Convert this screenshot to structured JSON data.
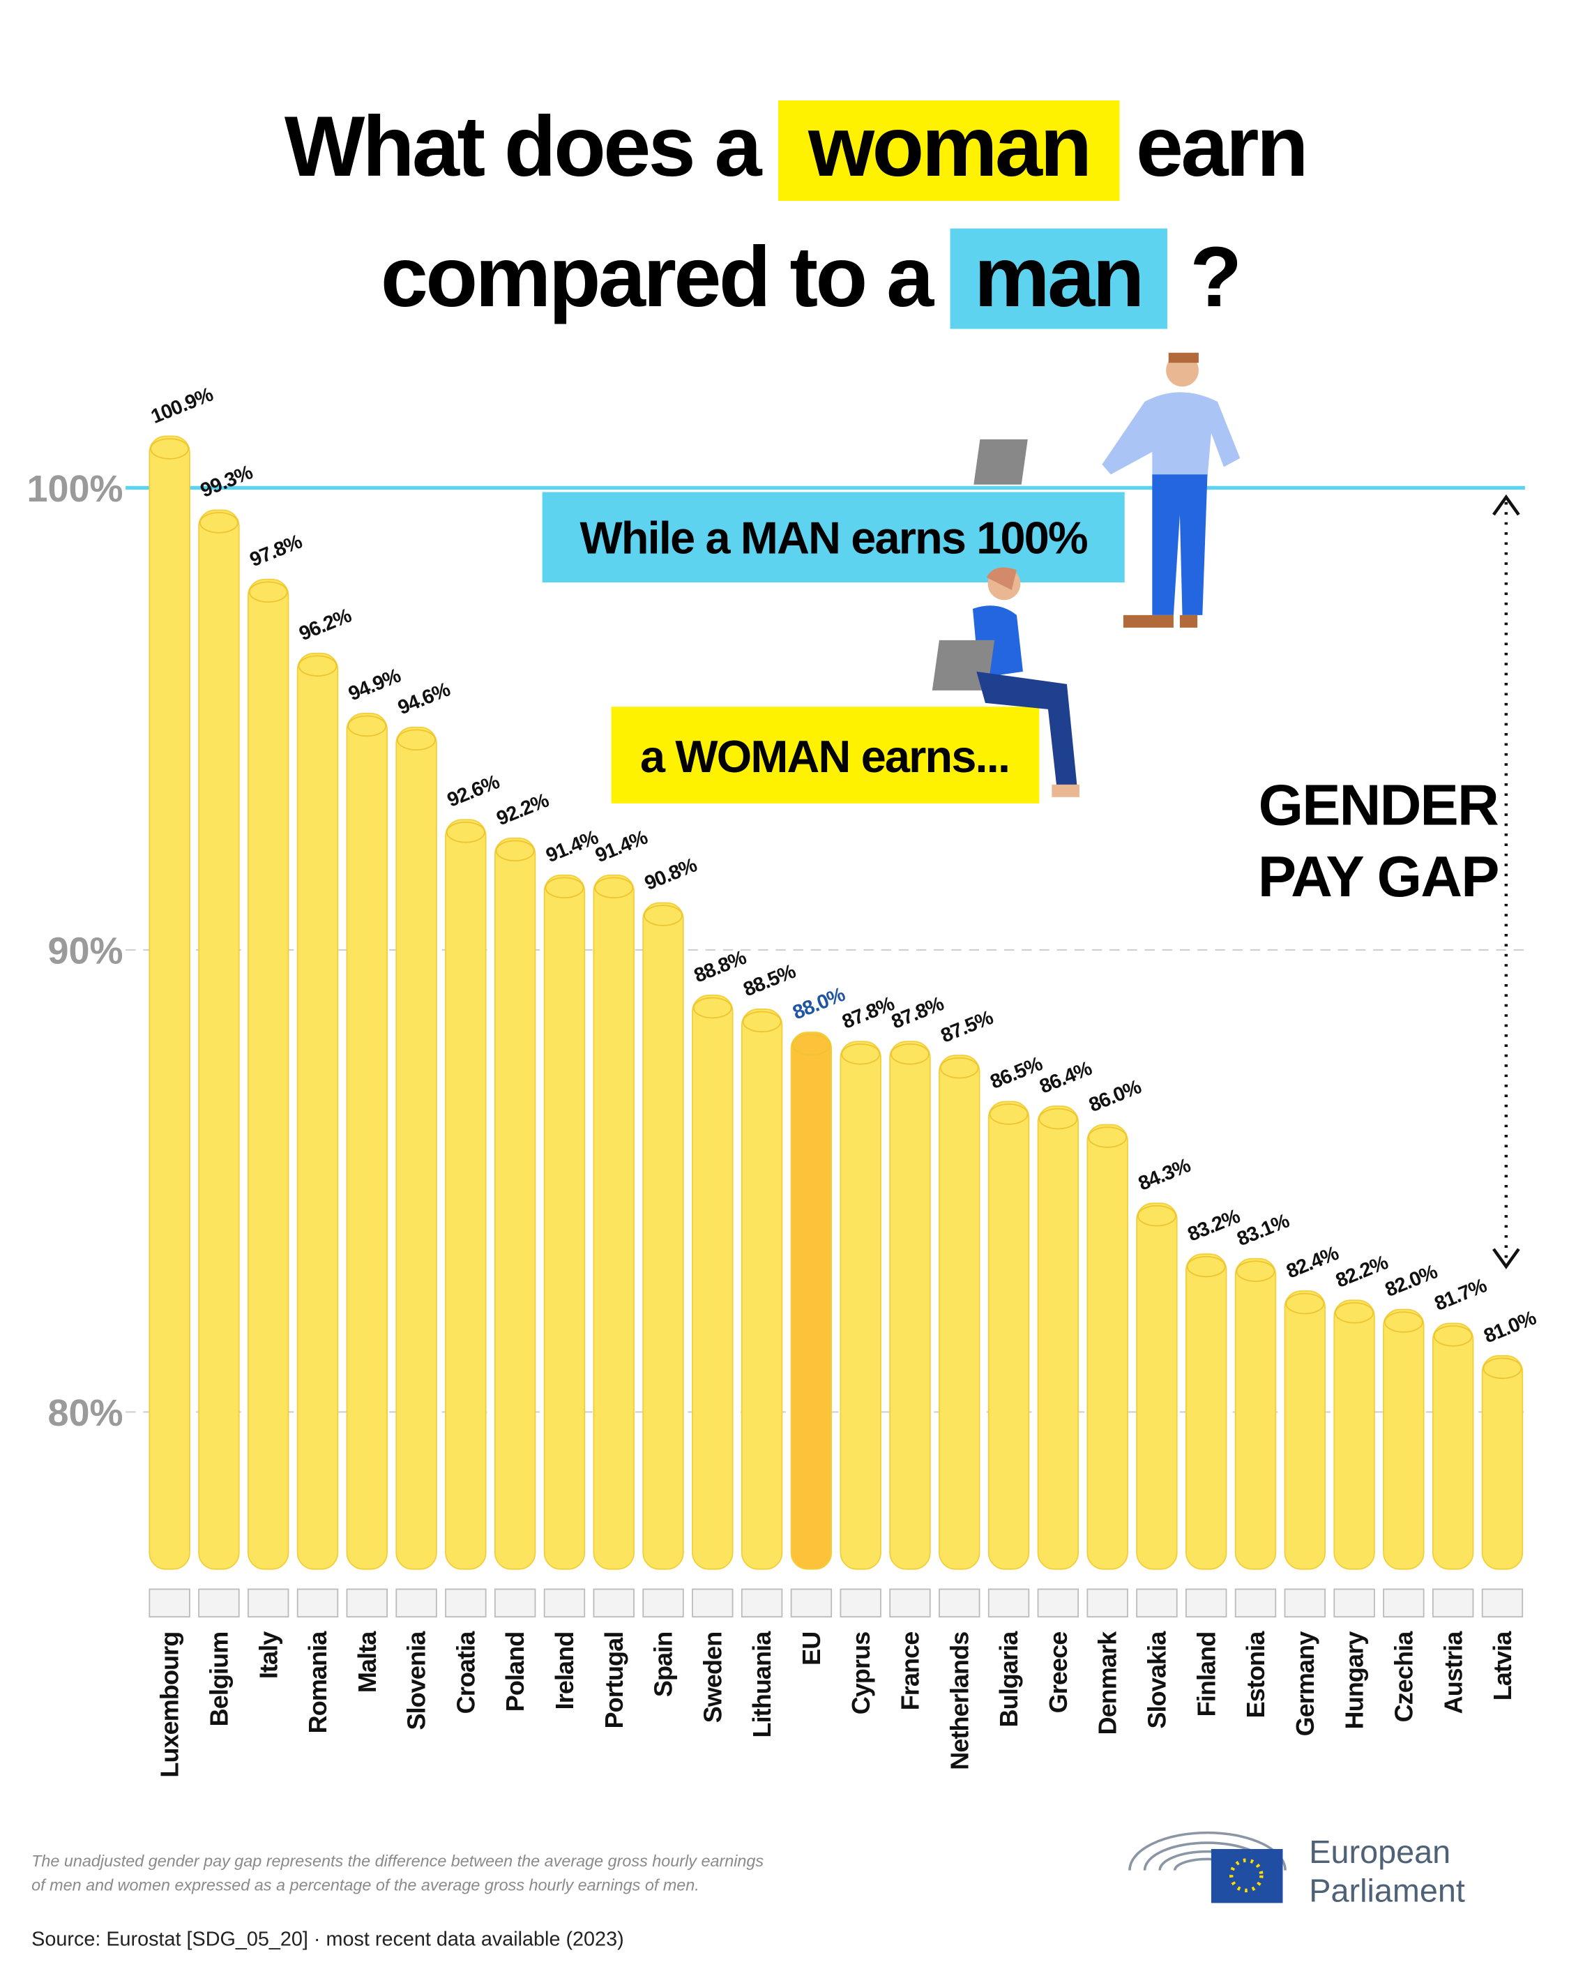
{
  "title": {
    "part1": "What does a",
    "woman": "woman",
    "part2": "earn",
    "part3": "compared to a",
    "man": "man",
    "part4": "?"
  },
  "chart_data": {
    "type": "bar",
    "categories": [
      "Luxembourg",
      "Belgium",
      "Italy",
      "Romania",
      "Malta",
      "Slovenia",
      "Croatia",
      "Poland",
      "Ireland",
      "Portugal",
      "Spain",
      "Sweden",
      "Lithuania",
      "EU",
      "Cyprus",
      "France",
      "Netherlands",
      "Bulgaria",
      "Greece",
      "Denmark",
      "Slovakia",
      "Finland",
      "Estonia",
      "Germany",
      "Hungary",
      "Czechia",
      "Austria",
      "Latvia"
    ],
    "values": [
      100.9,
      99.3,
      97.8,
      96.2,
      94.9,
      94.6,
      92.6,
      92.2,
      91.4,
      91.4,
      90.8,
      88.8,
      88.5,
      88.0,
      87.8,
      87.8,
      87.5,
      86.5,
      86.4,
      86.0,
      84.3,
      83.2,
      83.1,
      82.4,
      82.2,
      82.0,
      81.7,
      81.0
    ],
    "value_labels": [
      "100.9%",
      "99.3%",
      "97.8%",
      "96.2%",
      "94.9%",
      "94.6%",
      "92.6%",
      "92.2%",
      "91.4%",
      "91.4%",
      "90.8%",
      "88.8%",
      "88.5%",
      "88.0%",
      "87.8%",
      "87.8%",
      "87.5%",
      "86.5%",
      "86.4%",
      "86.0%",
      "84.3%",
      "83.2%",
      "83.1%",
      "82.4%",
      "82.2%",
      "82.0%",
      "81.7%",
      "81.0%"
    ],
    "colors": [
      "#fde45f",
      "#fde45f",
      "#fde45f",
      "#fde45f",
      "#fde45f",
      "#fde45f",
      "#fde45f",
      "#fde45f",
      "#fde45f",
      "#fde45f",
      "#fde45f",
      "#fde45f",
      "#fde45f",
      "#fbc23a",
      "#fde45f",
      "#fde45f",
      "#fde45f",
      "#fde45f",
      "#fde45f",
      "#fde45f",
      "#fde45f",
      "#fde45f",
      "#fde45f",
      "#fde45f",
      "#fde45f",
      "#fde45f",
      "#fde45f",
      "#fde45f"
    ],
    "label_colors": [
      "#111",
      "#111",
      "#111",
      "#111",
      "#111",
      "#111",
      "#111",
      "#111",
      "#111",
      "#111",
      "#111",
      "#111",
      "#111",
      "#1f55a3",
      "#111",
      "#111",
      "#111",
      "#111",
      "#111",
      "#111",
      "#111",
      "#111",
      "#111",
      "#111",
      "#111",
      "#111",
      "#111",
      "#111"
    ],
    "ylim": [
      76.6,
      102
    ],
    "yticks": [
      {
        "value": 80,
        "label": "80%"
      },
      {
        "value": 90,
        "label": "90%"
      },
      {
        "value": 100,
        "label": "100%"
      }
    ],
    "grid": true,
    "annotations": {
      "man": "While a MAN earns 100%",
      "woman": "a WOMAN earns...",
      "gap_line1": "GENDER",
      "gap_line2": "PAY GAP"
    }
  },
  "footnote": [
    "The unadjusted gender pay gap represents the difference between the average gross hourly earnings",
    "of men and women expressed as a percentage of the average gross hourly earnings of men."
  ],
  "source": "Source: Eurostat [SDG_05_20]  ·  most recent data available (2023)",
  "logo": {
    "line1": "European",
    "line2": "Parliament"
  }
}
